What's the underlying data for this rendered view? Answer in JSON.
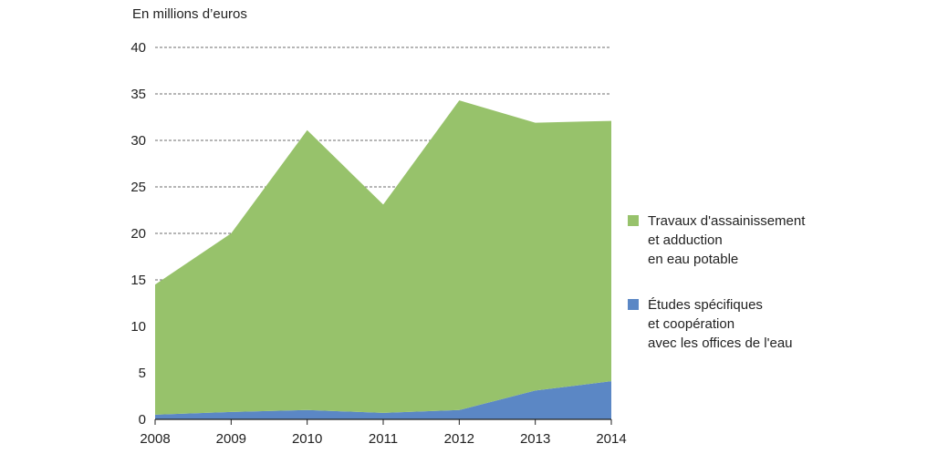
{
  "chart_data": {
    "type": "area",
    "stacked": true,
    "y_unit_label": "En millions d’euros",
    "x": [
      "2008",
      "2009",
      "2010",
      "2011",
      "2012",
      "2013",
      "2014"
    ],
    "ylim": [
      0,
      40
    ],
    "yticks": [
      "0",
      "5",
      "10",
      "15",
      "20",
      "25",
      "30",
      "35",
      "40"
    ],
    "grid": "horizontal dashed",
    "legend_position": "right",
    "series": [
      {
        "name": "Études spécifiques\net coopération\navec les offices de l'eau",
        "color": "#5b87c5",
        "values": [
          0.5,
          0.8,
          1.0,
          0.7,
          1.0,
          3.1,
          4.1
        ]
      },
      {
        "name": "Travaux d'assainissement\net adduction\nen eau potable",
        "color": "#97c26b",
        "values": [
          14.0,
          19.2,
          30.1,
          22.4,
          33.3,
          28.8,
          28.0
        ]
      }
    ]
  },
  "legend_order": [
    1,
    0
  ]
}
